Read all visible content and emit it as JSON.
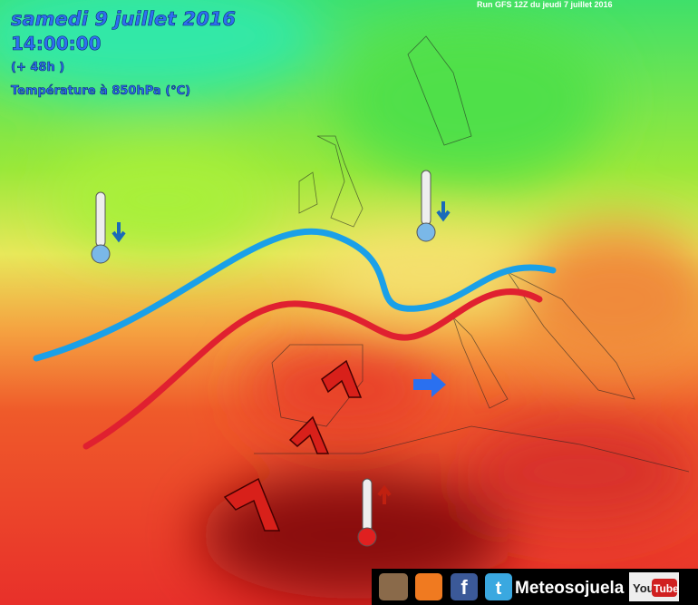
{
  "header": {
    "date": "samedi 9 juillet 2016",
    "time": "14:00:00",
    "lead": "(+ 48h )",
    "field": "Température à 850hPa (°C)",
    "run": "Run GFS 12Z du jeudi 7 juillet 2016"
  },
  "footer": {
    "brand": "Meteosojuela",
    "facebook": "f",
    "twitter": "t",
    "youtube_left": "You",
    "youtube_right": "Tube"
  }
}
